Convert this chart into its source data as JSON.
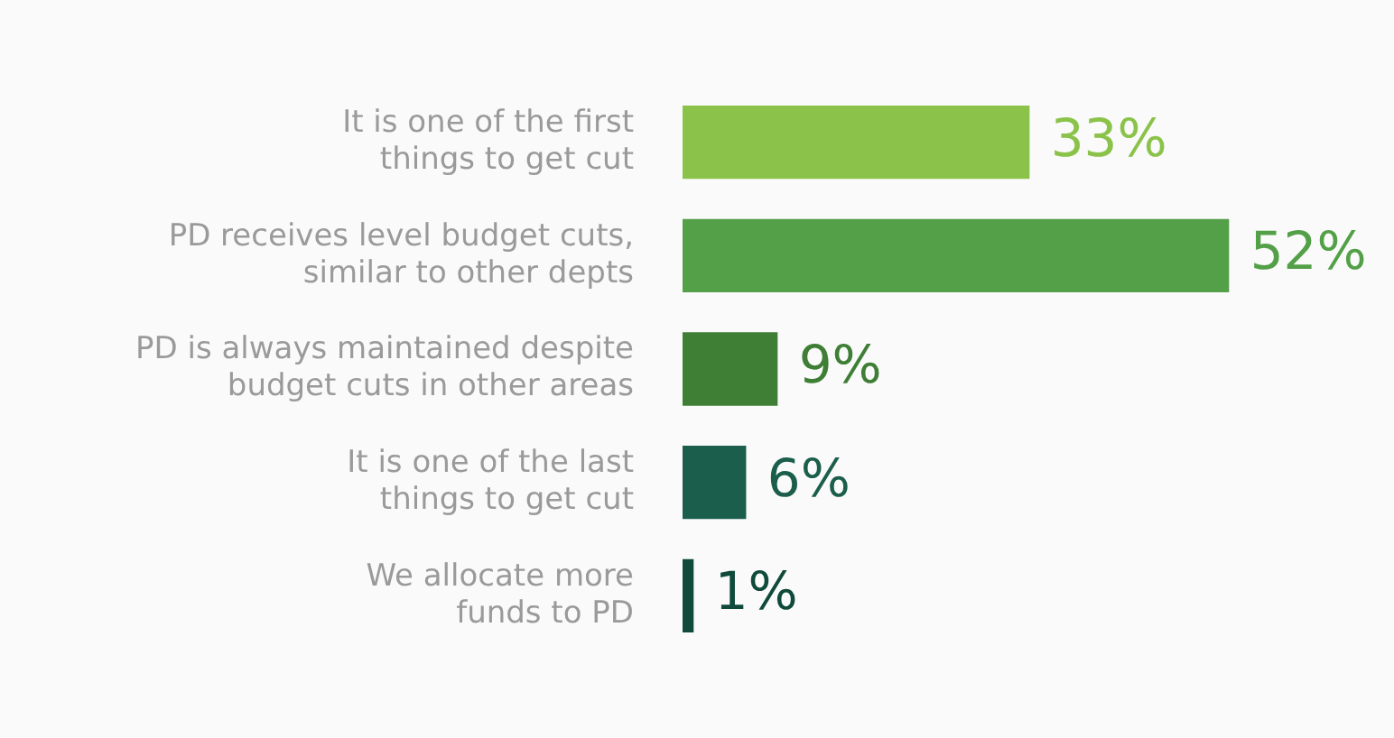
{
  "chart_data": {
    "type": "bar",
    "orientation": "horizontal",
    "categories": [
      "It is one of the first things to get cut",
      "PD receives level budget cuts, similar to other depts",
      "PD is always maintained despite budget cuts in other areas",
      "It is one of the last things to get cut",
      "We allocate more funds to PD"
    ],
    "values": [
      33,
      52,
      9,
      6,
      1
    ],
    "colors": [
      "#8bc34a",
      "#53a048",
      "#3e7e35",
      "#1b5e4b",
      "#0f4a3a"
    ],
    "value_labels": [
      "33%",
      "52%",
      "9%",
      "6%",
      "1%"
    ],
    "tick_labels": "y",
    "grid": false,
    "legend": false
  }
}
